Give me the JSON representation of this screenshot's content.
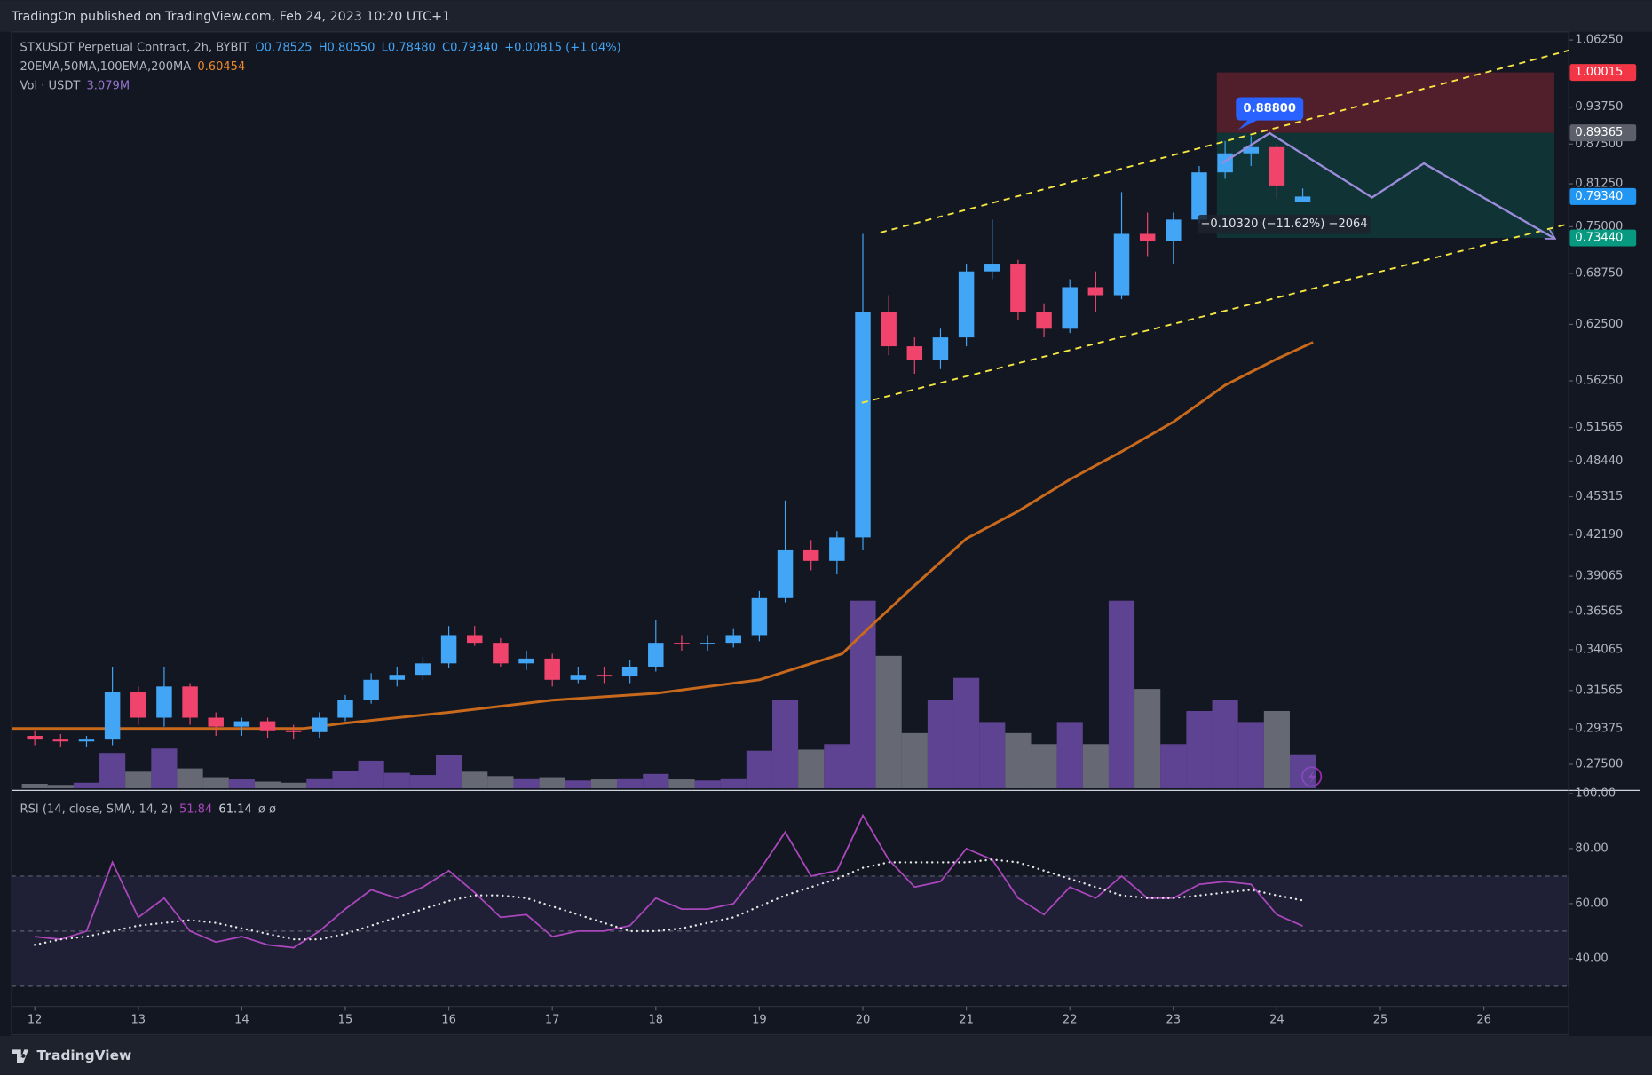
{
  "header": {
    "publisher": "TradingOn published on TradingView.com, Feb 24, 2023 10:20 UTC+1"
  },
  "footer": {
    "brand": "TradingView"
  },
  "chart_data": [
    {
      "type": "candlestick",
      "title": "STXUSDT Perpetual Contract, 2h, BYBIT",
      "ohlc_legend": [
        "O0.78525",
        "H0.80550",
        "L0.78480",
        "C0.79340",
        "+0.00815 (+1.04%)"
      ],
      "log_scale": true,
      "up_color": "#42a5f5",
      "down_color": "#f0446c",
      "x": [
        12,
        12.25,
        12.5,
        12.75,
        13,
        13.25,
        13.5,
        13.75,
        14,
        14.25,
        14.5,
        14.75,
        15,
        15.25,
        15.5,
        15.75,
        16,
        16.25,
        16.5,
        16.75,
        17,
        17.25,
        17.5,
        17.75,
        18,
        18.25,
        18.5,
        18.75,
        19,
        19.25,
        19.5,
        19.75,
        20,
        20.25,
        20.5,
        20.75,
        21,
        21.25,
        21.5,
        21.75,
        22,
        22.25,
        22.5,
        22.75,
        23,
        23.25,
        23.5,
        23.75,
        24,
        24.25
      ],
      "open": [
        0.29,
        0.288,
        0.287,
        0.288,
        0.315,
        0.3,
        0.318,
        0.3,
        0.295,
        0.298,
        0.293,
        0.292,
        0.3,
        0.31,
        0.322,
        0.325,
        0.332,
        0.35,
        0.345,
        0.332,
        0.335,
        0.322,
        0.325,
        0.324,
        0.33,
        0.345,
        0.344,
        0.345,
        0.35,
        0.375,
        0.41,
        0.402,
        0.42,
        0.64,
        0.6,
        0.585,
        0.61,
        0.69,
        0.7,
        0.64,
        0.62,
        0.67,
        0.66,
        0.74,
        0.73,
        0.76,
        0.83,
        0.86,
        0.87,
        0.7853
      ],
      "high": [
        0.293,
        0.291,
        0.29,
        0.33,
        0.318,
        0.33,
        0.32,
        0.303,
        0.3,
        0.3,
        0.296,
        0.303,
        0.313,
        0.326,
        0.33,
        0.336,
        0.356,
        0.356,
        0.348,
        0.34,
        0.338,
        0.33,
        0.33,
        0.334,
        0.36,
        0.35,
        0.35,
        0.354,
        0.38,
        0.45,
        0.418,
        0.425,
        0.74,
        0.66,
        0.61,
        0.62,
        0.7,
        0.76,
        0.705,
        0.65,
        0.68,
        0.69,
        0.8,
        0.77,
        0.77,
        0.84,
        0.88,
        0.888,
        0.875,
        0.8055
      ],
      "low": [
        0.285,
        0.284,
        0.284,
        0.285,
        0.296,
        0.295,
        0.296,
        0.29,
        0.29,
        0.289,
        0.288,
        0.289,
        0.298,
        0.308,
        0.318,
        0.322,
        0.329,
        0.343,
        0.33,
        0.328,
        0.318,
        0.32,
        0.32,
        0.32,
        0.327,
        0.34,
        0.34,
        0.342,
        0.346,
        0.372,
        0.395,
        0.392,
        0.41,
        0.59,
        0.57,
        0.575,
        0.6,
        0.68,
        0.63,
        0.61,
        0.615,
        0.64,
        0.655,
        0.71,
        0.7,
        0.755,
        0.82,
        0.84,
        0.79,
        0.7848
      ],
      "close": [
        0.288,
        0.287,
        0.288,
        0.315,
        0.3,
        0.318,
        0.3,
        0.295,
        0.298,
        0.293,
        0.292,
        0.3,
        0.31,
        0.322,
        0.325,
        0.332,
        0.35,
        0.345,
        0.332,
        0.335,
        0.322,
        0.325,
        0.324,
        0.33,
        0.345,
        0.344,
        0.345,
        0.35,
        0.375,
        0.41,
        0.402,
        0.42,
        0.64,
        0.6,
        0.585,
        0.61,
        0.69,
        0.7,
        0.64,
        0.62,
        0.67,
        0.66,
        0.74,
        0.73,
        0.76,
        0.83,
        0.86,
        0.87,
        0.81,
        0.7934
      ],
      "volume": {
        "name": "Vol · USDT",
        "value_label": "3.079M",
        "up_color": "#7e57c2",
        "down_color": "#8a8d96",
        "values": [
          0.4,
          0.3,
          0.5,
          3.2,
          1.5,
          3.6,
          1.8,
          1.0,
          0.8,
          0.6,
          0.5,
          0.9,
          1.6,
          2.5,
          1.4,
          1.2,
          3.0,
          1.5,
          1.1,
          0.9,
          1.0,
          0.7,
          0.8,
          0.9,
          1.3,
          0.8,
          0.7,
          0.9,
          3.4,
          8.0,
          3.5,
          4.0,
          17.0,
          12.0,
          5.0,
          8.0,
          10.0,
          6.0,
          5.0,
          4.0,
          6.0,
          4.0,
          17.0,
          9.0,
          4.0,
          7.0,
          8.0,
          6.0,
          7.0,
          3.079
        ]
      },
      "ma": {
        "name": "20EMA,50MA,100EMA,200MA",
        "value_label": "0.60454",
        "color": "#c8691c",
        "x": [
          11.78,
          14.6,
          15,
          16,
          17,
          18,
          19,
          19.8,
          20,
          20.5,
          21,
          21.5,
          22,
          22.5,
          23,
          23.5,
          24,
          24.35
        ],
        "values": [
          0.294,
          0.294,
          0.297,
          0.303,
          0.31,
          0.314,
          0.322,
          0.338,
          0.351,
          0.384,
          0.419,
          0.441,
          0.468,
          0.493,
          0.521,
          0.558,
          0.586,
          0.60454
        ]
      },
      "xlim": [
        11.776,
        26.82
      ],
      "xticks": [
        12,
        13,
        14,
        15,
        16,
        17,
        18,
        19,
        20,
        21,
        22,
        23,
        24,
        25,
        26
      ],
      "ylim": [
        0.263,
        1.079
      ],
      "yticks": [
        {
          "value": 1.0625,
          "label": "1.06250"
        },
        {
          "value": 0.9375,
          "label": "0.93750"
        },
        {
          "value": 0.875,
          "label": "0.87500"
        },
        {
          "value": 0.8125,
          "label": "0.81250"
        },
        {
          "value": 0.75,
          "label": "0.75000"
        },
        {
          "value": 0.6875,
          "label": "0.68750"
        },
        {
          "value": 0.625,
          "label": "0.62500"
        },
        {
          "value": 0.5625,
          "label": "0.56250"
        },
        {
          "value": 0.51565,
          "label": "0.51565"
        },
        {
          "value": 0.4844,
          "label": "0.48440"
        },
        {
          "value": 0.45315,
          "label": "0.45315"
        },
        {
          "value": 0.4219,
          "label": "0.42190"
        },
        {
          "value": 0.39065,
          "label": "0.39065"
        },
        {
          "value": 0.36565,
          "label": "0.36565"
        },
        {
          "value": 0.34065,
          "label": "0.34065"
        },
        {
          "value": 0.31565,
          "label": "0.31565"
        },
        {
          "value": 0.29375,
          "label": "0.29375"
        },
        {
          "value": 0.275,
          "label": "0.27500"
        }
      ],
      "price_labels": [
        {
          "value": 1.00015,
          "label": "1.00015",
          "color": "#f23645"
        },
        {
          "value": 0.89365,
          "label": "0.89365",
          "color": "#5d606b"
        },
        {
          "value": 0.7934,
          "label": "0.79340",
          "color": "#2196f3"
        },
        {
          "value": 0.7344,
          "label": "0.73440",
          "color": "#089981"
        }
      ],
      "position": {
        "x": [
          23.42,
          26.68
        ],
        "label": "−0.10320 (−11.62%) −2064",
        "stop_color": "rgba(242,54,69,0.28)",
        "target_color": "rgba(8,153,129,0.22)"
      },
      "peak": {
        "x": 23.93,
        "value": 0.888,
        "label": "0.88800",
        "color": "#2962ff"
      },
      "drawings": [
        {
          "color": "#f5e642",
          "x": [
            20.17,
            26.82
          ],
          "values": [
            0.742,
            1.042
          ]
        },
        {
          "color": "#f5e642",
          "x": [
            19.99,
            26.82
          ],
          "values": [
            0.54,
            0.754
          ]
        },
        {
          "color": "#9c8cdb",
          "x": [
            23.47,
            23.93,
            24.92,
            25.42,
            26.68
          ],
          "values": [
            0.844,
            0.893,
            0.792,
            0.844,
            0.734
          ]
        }
      ]
    },
    {
      "type": "line",
      "title": "RSI (14, close, SMA, 14, 2)",
      "value_labels": [
        "51.84",
        "61.14",
        "ø ø"
      ],
      "series": [
        {
          "name": "RSI",
          "color": "#ab47bc",
          "values": [
            48,
            47,
            50,
            75,
            55,
            62,
            50,
            46,
            48,
            45,
            44,
            50,
            58,
            65,
            62,
            66,
            72,
            64,
            55,
            56,
            48,
            50,
            50,
            52,
            62,
            58,
            58,
            60,
            72,
            86,
            70,
            72,
            92,
            76,
            66,
            68,
            80,
            76,
            62,
            56,
            66,
            62,
            70,
            62,
            62,
            67,
            68,
            67,
            56,
            51.84
          ]
        },
        {
          "name": "RSI-based MA",
          "color": "#e6e6e6",
          "values": [
            45,
            47,
            48,
            50,
            52,
            53,
            54,
            53,
            51,
            49,
            47,
            47,
            49,
            52,
            55,
            58,
            61,
            63,
            63,
            62,
            59,
            56,
            53,
            50,
            50,
            51,
            53,
            55,
            59,
            63,
            66,
            69,
            73,
            75,
            75,
            75,
            75,
            76,
            75,
            72,
            69,
            66,
            63,
            62,
            62,
            63,
            64,
            65,
            63,
            61.14
          ]
        }
      ],
      "bands": [
        70,
        50,
        30
      ],
      "ylim": [
        23.8,
        100.4
      ],
      "yticks": [
        {
          "value": 100,
          "label": "100.00"
        },
        {
          "value": 80,
          "label": "80.00"
        },
        {
          "value": 60,
          "label": "60.00"
        },
        {
          "value": 40,
          "label": "40.00"
        }
      ]
    }
  ]
}
